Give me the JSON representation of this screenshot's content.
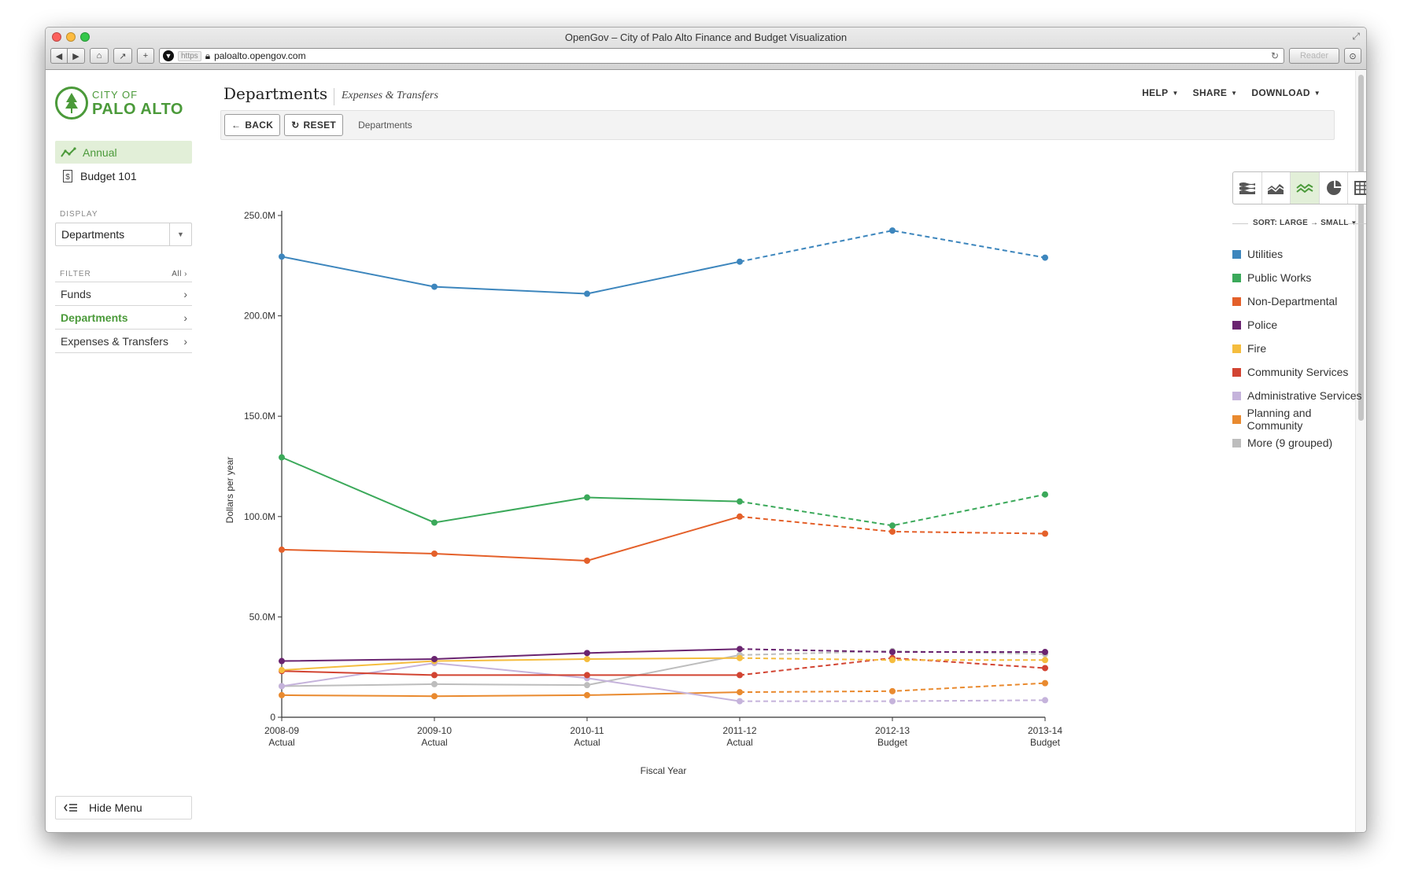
{
  "browser": {
    "window_title": "OpenGov – City of Palo Alto Finance and Budget Visualization",
    "url_scheme": "https",
    "url": "paloalto.opengov.com",
    "reader_label": "Reader"
  },
  "logo": {
    "top": "CITY OF",
    "bottom": "PALO ALTO"
  },
  "sidebar": {
    "nav": [
      {
        "label": "Annual",
        "icon": "trend-icon",
        "active": true
      },
      {
        "label": "Budget 101",
        "icon": "document-dollar-icon",
        "active": false
      }
    ],
    "display_label": "DISPLAY",
    "display_value": "Departments",
    "filter_label": "FILTER",
    "filter_all": "All",
    "filters": [
      {
        "label": "Funds",
        "active": false
      },
      {
        "label": "Departments",
        "active": true
      },
      {
        "label": "Expenses & Transfers",
        "active": false
      }
    ],
    "hide_menu": "Hide Menu"
  },
  "header": {
    "title": "Departments",
    "subtitle": "Expenses & Transfers",
    "menus": [
      "HELP",
      "SHARE",
      "DOWNLOAD"
    ],
    "back": "BACK",
    "reset": "RESET",
    "breadcrumb": "Departments"
  },
  "view_buttons": [
    "stacked-area-icon",
    "area-icon",
    "line-icon",
    "pie-icon",
    "table-icon"
  ],
  "sort_label": "SORT: LARGE → SMALL",
  "colors": {
    "accent": "#4b9a3a",
    "accent_light": "#e2efd8"
  },
  "chart_data": {
    "type": "line",
    "xlabel": "Fiscal Year",
    "ylabel": "Dollars per year",
    "ylim": [
      0,
      250000000
    ],
    "yticks": [
      "0",
      "50.0M",
      "100.0M",
      "150.0M",
      "200.0M",
      "250.0M"
    ],
    "categories": [
      {
        "year": "2008-09",
        "kind": "Actual"
      },
      {
        "year": "2009-10",
        "kind": "Actual"
      },
      {
        "year": "2010-11",
        "kind": "Actual"
      },
      {
        "year": "2011-12",
        "kind": "Actual"
      },
      {
        "year": "2012-13",
        "kind": "Budget"
      },
      {
        "year": "2013-14",
        "kind": "Budget"
      }
    ],
    "actual_count": 4,
    "legend_position": "right",
    "series": [
      {
        "name": "Utilities",
        "color": "#3d86bd",
        "values": [
          229.5,
          214.5,
          211.0,
          227.0,
          242.5,
          229.0
        ]
      },
      {
        "name": "Public Works",
        "color": "#3ba95a",
        "values": [
          129.5,
          97.0,
          109.5,
          107.5,
          95.5,
          111.0
        ]
      },
      {
        "name": "Non-Departmental",
        "color": "#e4602a",
        "values": [
          83.5,
          81.5,
          78.0,
          100.0,
          92.5,
          91.5
        ]
      },
      {
        "name": "Police",
        "color": "#6a2470",
        "values": [
          28.0,
          29.0,
          32.0,
          34.0,
          32.5,
          32.5
        ]
      },
      {
        "name": "Fire",
        "color": "#f5bd3e",
        "values": [
          23.5,
          28.0,
          29.0,
          29.5,
          28.5,
          28.5
        ]
      },
      {
        "name": "Community Services",
        "color": "#d24432",
        "values": [
          23.0,
          21.0,
          21.0,
          21.0,
          29.5,
          24.5
        ]
      },
      {
        "name": "Administrative Services",
        "color": "#c5b3db",
        "values": [
          15.5,
          27.0,
          19.5,
          8.0,
          8.0,
          8.5
        ]
      },
      {
        "name": "Planning and Community",
        "color": "#e98a2f",
        "values": [
          11.0,
          10.5,
          11.0,
          12.5,
          13.0,
          17.0
        ]
      },
      {
        "name": "More (9 grouped)",
        "color": "#bdbdbd",
        "values": [
          15.5,
          16.5,
          16.0,
          31.0,
          33.0,
          31.5
        ]
      }
    ]
  }
}
